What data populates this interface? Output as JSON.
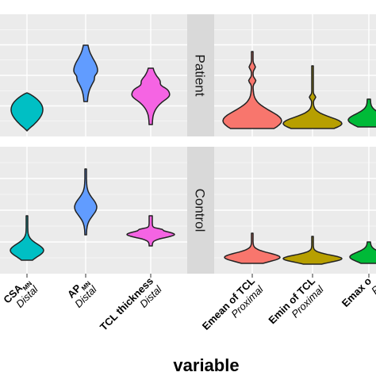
{
  "chart_data": {
    "type": "violin",
    "xlabel": "variable",
    "facets": [
      "Patient",
      "Control"
    ],
    "colors": {
      "CSA_MN_Distal": "#00BFC4",
      "AP_MN_Distal": "#619CFF",
      "TCL_thickness_Distal": "#F564E3",
      "Emean_of_TCL_Proximal": "#F8766D",
      "Emin_of_TCL_Proximal": "#B79F00",
      "Emax_of_TCL": "#00BA38"
    },
    "left_panel_categories": [
      {
        "key": "CSA_MN_Distal",
        "main": "CSA",
        "sub": "MN",
        "line2": "Distal"
      },
      {
        "key": "AP_MN_Distal",
        "main": "AP",
        "sub": "MN",
        "line2": "Distal"
      },
      {
        "key": "TCL_thickness_Distal",
        "main": "TCL thickness",
        "sub": "",
        "line2": "Distal"
      }
    ],
    "right_panel_categories": [
      {
        "key": "Emean_of_TCL_Proximal",
        "main": "Emean of TCL",
        "line2": "Proximal"
      },
      {
        "key": "Emin_of_TCL_Proximal",
        "main": "Emin of TCL",
        "line2": "Proximal"
      },
      {
        "key": "Emax_of_TCL",
        "main": "Emax o",
        "line2": "P"
      }
    ],
    "panel_background": "#EBEBEB",
    "strip_background": "#D9D9D9",
    "grid": true,
    "legend": "none"
  }
}
